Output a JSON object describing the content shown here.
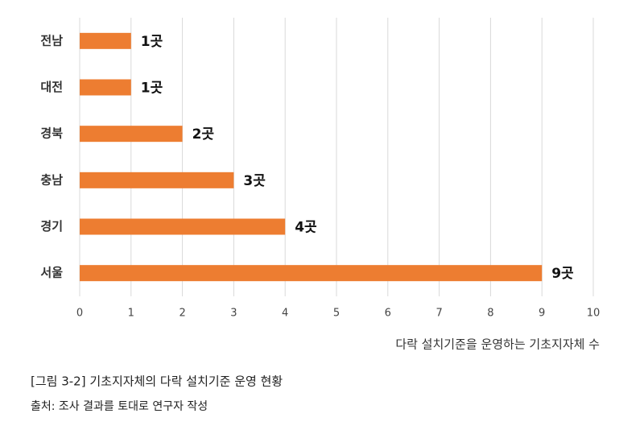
{
  "chart_data": {
    "type": "barh",
    "categories": [
      "전남",
      "대전",
      "경북",
      "충남",
      "경기",
      "서울"
    ],
    "values": [
      1,
      1,
      2,
      3,
      4,
      9
    ],
    "value_labels": [
      "1곳",
      "1곳",
      "2곳",
      "3곳",
      "4곳",
      "9곳"
    ],
    "color": "#ed7d31",
    "xlim": [
      0,
      10
    ],
    "xticks": [
      0,
      1,
      2,
      3,
      4,
      5,
      6,
      7,
      8,
      9,
      10
    ],
    "grid": true,
    "x_label": "다락 설치기준을 운영하는 기초지자체 수",
    "caption": "[그림 3-2] 기초지자체의 다락 설치기준 운영 현황",
    "source": "출처: 조사 결과를 토대로 연구자 작성"
  }
}
